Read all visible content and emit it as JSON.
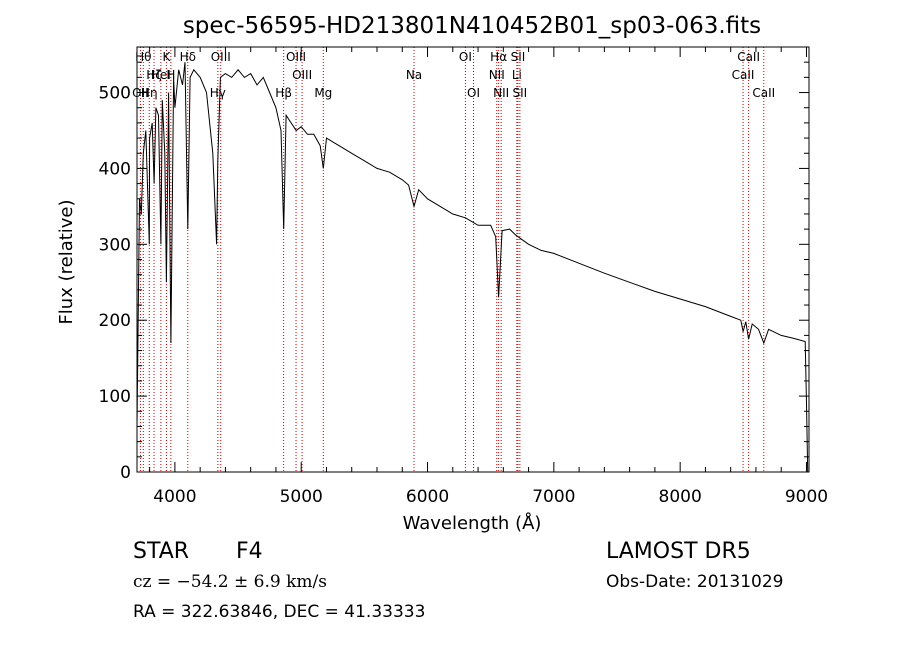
{
  "chart_data": {
    "type": "line",
    "title": "spec-56595-HD213801N410452B01_sp03-063.fits",
    "xlabel": "Wavelength (Å)",
    "ylabel": "Flux (relative)",
    "xlim": [
      3700,
      9020
    ],
    "ylim": [
      0,
      560
    ],
    "x_ticks": [
      4000,
      5000,
      6000,
      7000,
      8000,
      9000
    ],
    "y_ticks": [
      0,
      100,
      200,
      300,
      400,
      500
    ],
    "grid": false,
    "line_color": "#000000",
    "marker_color": "#c00000",
    "series": [
      {
        "x": [
          3700,
          3720,
          3734,
          3750,
          3770,
          3797,
          3800,
          3820,
          3835,
          3850,
          3870,
          3889,
          3900,
          3920,
          3933,
          3950,
          3968,
          3990,
          4000,
          4030,
          4060,
          4080,
          4102,
          4120,
          4150,
          4200,
          4250,
          4300,
          4330,
          4340,
          4360,
          4400,
          4450,
          4500,
          4550,
          4600,
          4650,
          4700,
          4750,
          4800,
          4840,
          4861,
          4880,
          4920,
          4960,
          5000,
          5050,
          5100,
          5150,
          5175,
          5200,
          5250,
          5300,
          5400,
          5500,
          5600,
          5700,
          5800,
          5850,
          5893,
          5930,
          6000,
          6100,
          6200,
          6300,
          6400,
          6500,
          6540,
          6563,
          6590,
          6650,
          6700,
          6800,
          6900,
          7000,
          7200,
          7400,
          7600,
          7800,
          8000,
          8200,
          8400,
          8480,
          8498,
          8520,
          8542,
          8570,
          8620,
          8662,
          8700,
          8800,
          8900,
          8990,
          9000,
          9010
        ],
        "y": [
          60,
          360,
          340,
          420,
          450,
          300,
          440,
          460,
          380,
          480,
          470,
          300,
          490,
          420,
          250,
          500,
          170,
          520,
          480,
          530,
          510,
          540,
          320,
          520,
          530,
          520,
          500,
          420,
          300,
          410,
          520,
          525,
          520,
          530,
          520,
          525,
          510,
          520,
          500,
          480,
          450,
          320,
          470,
          460,
          450,
          455,
          445,
          445,
          430,
          400,
          440,
          435,
          430,
          420,
          410,
          400,
          395,
          385,
          378,
          350,
          372,
          360,
          350,
          340,
          335,
          325,
          325,
          310,
          230,
          318,
          320,
          312,
          300,
          292,
          288,
          275,
          262,
          250,
          238,
          228,
          218,
          205,
          200,
          185,
          198,
          175,
          195,
          188,
          170,
          188,
          180,
          176,
          172,
          90,
          0
        ]
      }
    ],
    "line_markers": [
      {
        "x": 3727,
        "label": "OII",
        "row": 2
      },
      {
        "x": 3750,
        "label": "Hθ",
        "row": 0
      },
      {
        "x": 3797,
        "label": "Hη",
        "row": 2
      },
      {
        "x": 3835,
        "label": "Hζ",
        "row": 1
      },
      {
        "x": 3889,
        "label": "HeI",
        "row": 1
      },
      {
        "x": 3933,
        "label": "K",
        "row": 0
      },
      {
        "x": 3968,
        "label": "H",
        "row": 1
      },
      {
        "x": 4102,
        "label": "Hδ",
        "row": 0
      },
      {
        "x": 4340,
        "label": "Hγ",
        "row": 2
      },
      {
        "x": 4363,
        "label": "OIII",
        "row": 0
      },
      {
        "x": 4861,
        "label": "Hβ",
        "row": 2
      },
      {
        "x": 4959,
        "label": "OIII",
        "row": 0
      },
      {
        "x": 5007,
        "label": "OIII",
        "row": 1
      },
      {
        "x": 5175,
        "label": "Mg",
        "row": 2
      },
      {
        "x": 5893,
        "label": "Na",
        "row": 1
      },
      {
        "x": 6300,
        "label": "OI",
        "row": 0
      },
      {
        "x": 6364,
        "label": "OI",
        "row": 2
      },
      {
        "x": 6548,
        "label": "NII",
        "row": 1
      },
      {
        "x": 6563,
        "label": "Hα",
        "row": 0
      },
      {
        "x": 6583,
        "label": "NII",
        "row": 2
      },
      {
        "x": 6707,
        "label": "Li",
        "row": 1
      },
      {
        "x": 6716,
        "label": "SII",
        "row": 0
      },
      {
        "x": 6731,
        "label": "SII",
        "row": 2
      },
      {
        "x": 8498,
        "label": "CaII",
        "row": 1
      },
      {
        "x": 8542,
        "label": "CaII",
        "row": 0
      },
      {
        "x": 8662,
        "label": "CaII",
        "row": 2
      }
    ]
  },
  "info": {
    "object_type": "STAR",
    "subclass": "F4",
    "redshift_line": "cz = −54.2 ± 6.9 km/s",
    "coords_line": "RA = 322.63846, DEC =  41.33333",
    "survey": "LAMOST DR5",
    "obs_date": "Obs-Date: 20131029"
  }
}
